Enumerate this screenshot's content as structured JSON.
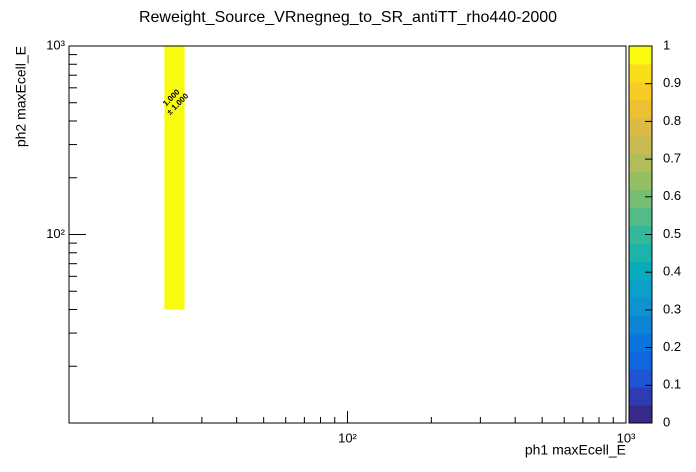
{
  "chart_data": {
    "type": "heatmap",
    "title": "Reweight_Source_VRnegneg_to_SR_antiTT_rho440-2000",
    "x_label": "ph1 maxEcell_E",
    "y_label": "ph2 maxEcell_E",
    "x_log": true,
    "y_log": true,
    "xlim": [
      10,
      1000
    ],
    "ylim": [
      10,
      1000
    ],
    "xticks": [
      {
        "value": 100,
        "label": "10²"
      },
      {
        "value": 1000,
        "label": "10³"
      }
    ],
    "yticks": [
      {
        "value": 100,
        "label": "10²"
      },
      {
        "value": 1000,
        "label": "10³"
      }
    ],
    "x_edges": [
      22,
      26
    ],
    "y_edges": [
      40,
      1000
    ],
    "values": [
      [
        1
      ]
    ],
    "value_labels": [
      [
        "1.000 ± 1.000"
      ]
    ],
    "zlim": [
      0,
      1
    ],
    "zticks": [
      0,
      0.1,
      0.2,
      0.3,
      0.4,
      0.5,
      0.6,
      0.7,
      0.8,
      0.9,
      1
    ],
    "colormap": [
      "#352a87",
      "#2f3bb0",
      "#1f55d2",
      "#0f66df",
      "#0a75dc",
      "#0d84d4",
      "#0f93cf",
      "#0ba0c9",
      "#09aab9",
      "#1db3ab",
      "#33b89a",
      "#53bb86",
      "#76bf72",
      "#95bf63",
      "#b1bd58",
      "#c8bb52",
      "#dbba45",
      "#eebe33",
      "#f9cb25",
      "#f9dd18",
      "#f9fb0e"
    ]
  }
}
